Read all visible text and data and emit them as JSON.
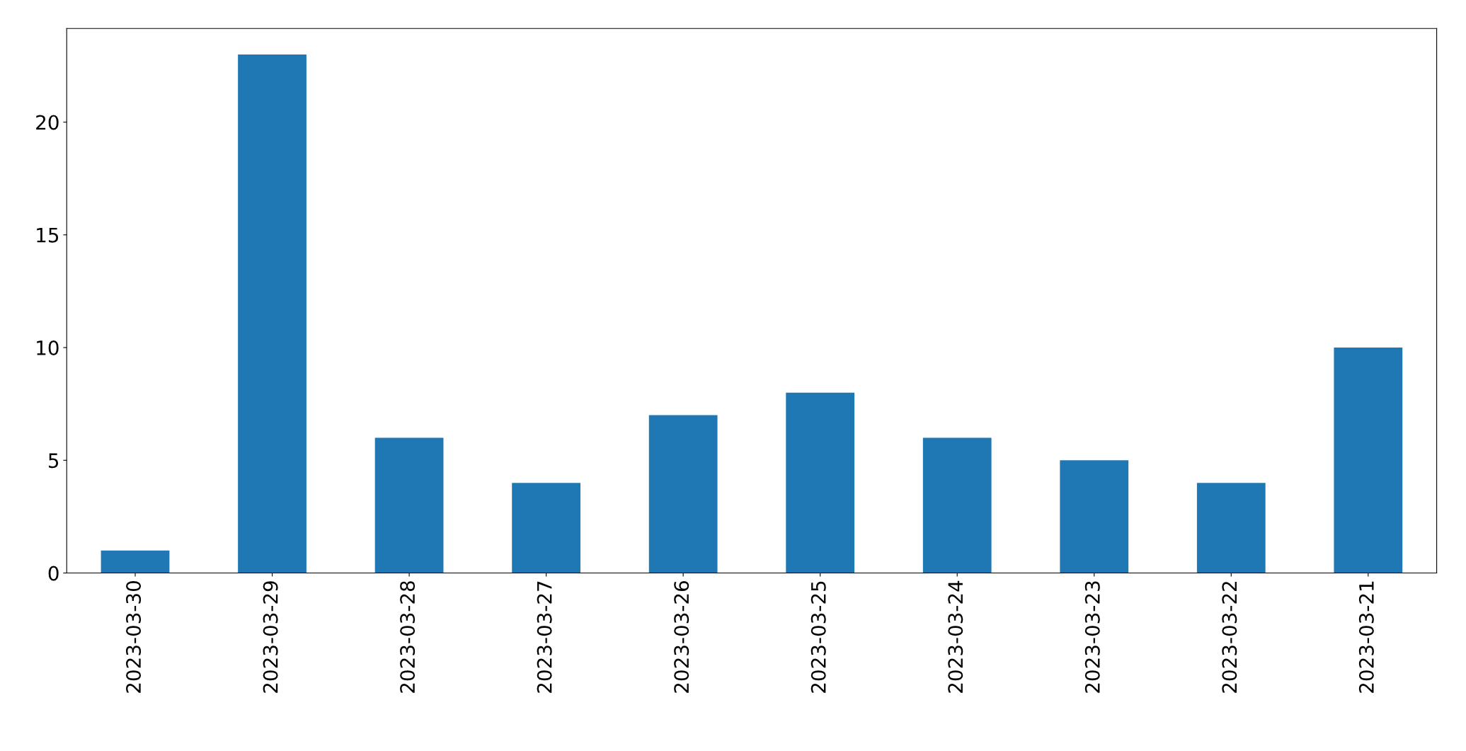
{
  "chart_data": {
    "type": "bar",
    "categories": [
      "2023-03-30",
      "2023-03-29",
      "2023-03-28",
      "2023-03-27",
      "2023-03-26",
      "2023-03-25",
      "2023-03-24",
      "2023-03-23",
      "2023-03-22",
      "2023-03-21"
    ],
    "values": [
      1,
      23,
      6,
      4,
      7,
      8,
      6,
      5,
      4,
      10
    ],
    "color": "#1f77b4",
    "ylim": [
      0,
      24.15
    ],
    "yticks": [
      0,
      5,
      10,
      15,
      20
    ],
    "grid": false,
    "legend": false
  }
}
